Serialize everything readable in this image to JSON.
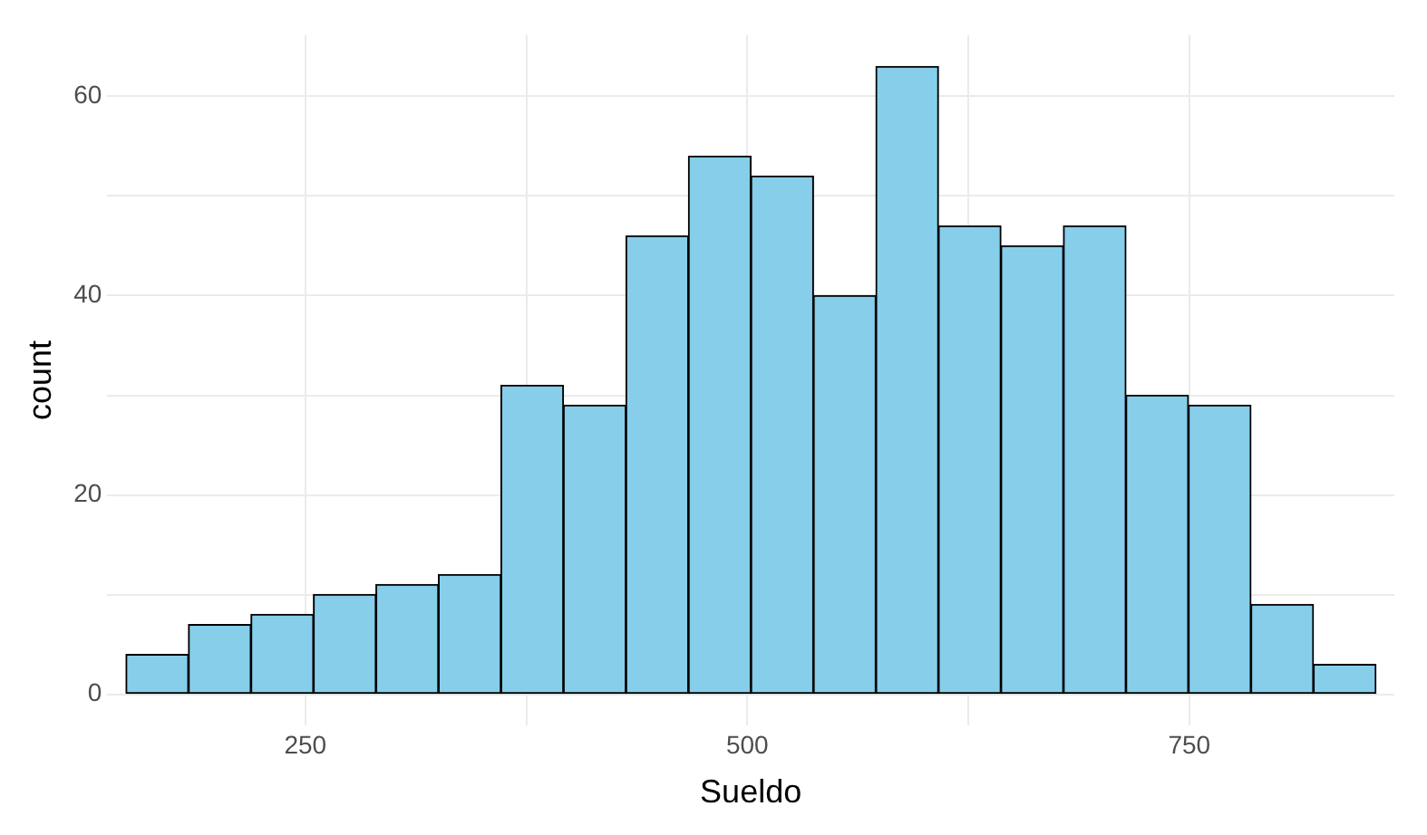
{
  "chart_data": {
    "type": "histogram",
    "xlabel": "Sueldo",
    "ylabel": "count",
    "bins": [
      148.6,
      183.9,
      219.3,
      254.6,
      290.0,
      325.3,
      360.7,
      396.0,
      431.4,
      466.7,
      502.1,
      537.4,
      572.8,
      608.1,
      643.5,
      678.8,
      714.2,
      749.5,
      784.9,
      820.2,
      855.6
    ],
    "values": [
      4,
      7,
      8,
      10,
      11,
      12,
      31,
      29,
      46,
      54,
      52,
      40,
      63,
      47,
      45,
      47,
      30,
      29,
      9,
      3
    ],
    "color": "#87ceeb",
    "xlim": [
      138,
      866
    ],
    "xticks": [
      250,
      {
        "value": 375,
        "label": null
      },
      500,
      {
        "value": 625,
        "label": null
      },
      750
    ],
    "ylim": [
      -3.15,
      66.15
    ],
    "yticks": [
      0,
      {
        "value": 10,
        "label": null
      },
      20,
      {
        "value": 30,
        "label": null
      },
      40,
      {
        "value": 50,
        "label": null
      },
      60
    ],
    "grid": true
  }
}
